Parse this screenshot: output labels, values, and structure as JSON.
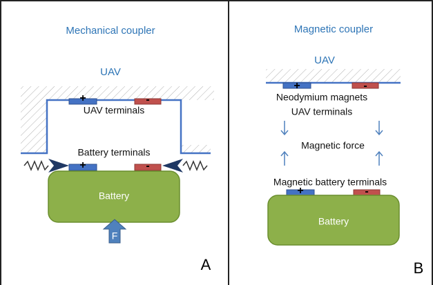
{
  "panels": [
    {
      "title": "Mechanical coupler",
      "uav": "UAV",
      "uav_terminals": "UAV terminals",
      "battery_terminals": "Battery terminals",
      "battery": "Battery",
      "force": "F",
      "label": "A",
      "plus": "+",
      "minus": "-"
    },
    {
      "title": "Magnetic coupler",
      "uav": "UAV",
      "magnets": "Neodymium magnets",
      "uav_terminals": "UAV terminals",
      "force": "Magnetic force",
      "battery_terminals": "Magnetic battery terminals",
      "battery": "Battery",
      "label": "B",
      "plus": "+",
      "minus": "-"
    }
  ]
}
